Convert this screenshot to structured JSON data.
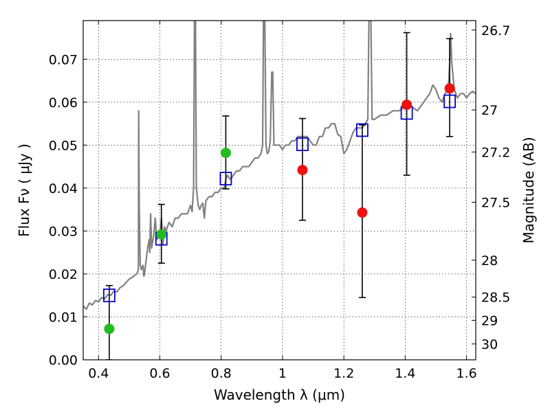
{
  "chart_data": {
    "type": "scatter",
    "xlabel": "Wavelength  λ (μm)",
    "ylabel": "Flux  Fν  ( μJy )",
    "ylabel_right": "Magnitude (AB)",
    "xlim": [
      0.35,
      1.63
    ],
    "ylim": [
      0.0,
      0.079
    ],
    "grid": true,
    "x_ticks": [
      0.4,
      0.6,
      0.8,
      1.0,
      1.2,
      1.4,
      1.6
    ],
    "x_tick_labels": [
      "0.4",
      "0.6",
      "0.8",
      "1",
      "1.2",
      "1.4",
      "1.6"
    ],
    "y_ticks": [
      0.0,
      0.01,
      0.02,
      0.03,
      0.04,
      0.05,
      0.06,
      0.07
    ],
    "y_tick_labels": [
      "0.00",
      "0.01",
      "0.02",
      "0.03",
      "0.04",
      "0.05",
      "0.06",
      "0.07"
    ],
    "right_ticks": [
      {
        "label": "26.7",
        "flux": 0.0768
      },
      {
        "label": "27",
        "flux": 0.0582
      },
      {
        "label": "27.2",
        "flux": 0.0484
      },
      {
        "label": "27.5",
        "flux": 0.0367
      },
      {
        "label": "28",
        "flux": 0.0232
      },
      {
        "label": "28.5",
        "flux": 0.0146
      },
      {
        "label": "29",
        "flux": 0.0092
      },
      {
        "label": "30",
        "flux": 0.0037
      }
    ],
    "series": [
      {
        "marker": "line",
        "color": "#808080",
        "points": [
          [
            0.35,
            0.0125
          ],
          [
            0.36,
            0.0118
          ],
          [
            0.37,
            0.0132
          ],
          [
            0.38,
            0.0128
          ],
          [
            0.39,
            0.0138
          ],
          [
            0.4,
            0.0135
          ],
          [
            0.41,
            0.0145
          ],
          [
            0.42,
            0.0142
          ],
          [
            0.43,
            0.0152
          ],
          [
            0.44,
            0.015
          ],
          [
            0.45,
            0.016
          ],
          [
            0.46,
            0.0158
          ],
          [
            0.47,
            0.0168
          ],
          [
            0.48,
            0.0172
          ],
          [
            0.49,
            0.018
          ],
          [
            0.5,
            0.0188
          ],
          [
            0.51,
            0.0192
          ],
          [
            0.52,
            0.0198
          ],
          [
            0.525,
            0.02
          ],
          [
            0.53,
            0.021
          ],
          [
            0.531,
            0.058
          ],
          [
            0.533,
            0.035
          ],
          [
            0.536,
            0.022
          ],
          [
            0.54,
            0.021
          ],
          [
            0.545,
            0.022
          ],
          [
            0.548,
            0.0195
          ],
          [
            0.55,
            0.02
          ],
          [
            0.555,
            0.023
          ],
          [
            0.56,
            0.026
          ],
          [
            0.565,
            0.028
          ],
          [
            0.567,
            0.025
          ],
          [
            0.57,
            0.034
          ],
          [
            0.573,
            0.026
          ],
          [
            0.58,
            0.029
          ],
          [
            0.585,
            0.033
          ],
          [
            0.59,
            0.028
          ],
          [
            0.6,
            0.029
          ],
          [
            0.605,
            0.033
          ],
          [
            0.61,
            0.027
          ],
          [
            0.615,
            0.031
          ],
          [
            0.62,
            0.03
          ],
          [
            0.63,
            0.032
          ],
          [
            0.64,
            0.031
          ],
          [
            0.65,
            0.033
          ],
          [
            0.66,
            0.033
          ],
          [
            0.67,
            0.034
          ],
          [
            0.68,
            0.034
          ],
          [
            0.69,
            0.034
          ],
          [
            0.7,
            0.036
          ],
          [
            0.705,
            0.0345
          ],
          [
            0.71,
            0.04
          ],
          [
            0.713,
            0.081
          ],
          [
            0.716,
            0.081
          ],
          [
            0.719,
            0.04
          ],
          [
            0.725,
            0.036
          ],
          [
            0.73,
            0.035
          ],
          [
            0.735,
            0.036
          ],
          [
            0.74,
            0.0365
          ],
          [
            0.745,
            0.033
          ],
          [
            0.75,
            0.037
          ],
          [
            0.76,
            0.038
          ],
          [
            0.77,
            0.038
          ],
          [
            0.78,
            0.039
          ],
          [
            0.79,
            0.039
          ],
          [
            0.8,
            0.04
          ],
          [
            0.81,
            0.04
          ],
          [
            0.815,
            0.042
          ],
          [
            0.82,
            0.043
          ],
          [
            0.83,
            0.042
          ],
          [
            0.84,
            0.043
          ],
          [
            0.85,
            0.044
          ],
          [
            0.86,
            0.044
          ],
          [
            0.87,
            0.045
          ],
          [
            0.88,
            0.045
          ],
          [
            0.89,
            0.045
          ],
          [
            0.9,
            0.046
          ],
          [
            0.91,
            0.047
          ],
          [
            0.92,
            0.047
          ],
          [
            0.93,
            0.048
          ],
          [
            0.935,
            0.05
          ],
          [
            0.938,
            0.081
          ],
          [
            0.942,
            0.081
          ],
          [
            0.946,
            0.05
          ],
          [
            0.95,
            0.048
          ],
          [
            0.955,
            0.0485
          ],
          [
            0.96,
            0.051
          ],
          [
            0.965,
            0.067
          ],
          [
            0.968,
            0.067
          ],
          [
            0.972,
            0.05
          ],
          [
            0.98,
            0.05
          ],
          [
            0.99,
            0.05
          ],
          [
            1.0,
            0.049
          ],
          [
            1.01,
            0.05
          ],
          [
            1.02,
            0.05
          ],
          [
            1.03,
            0.051
          ],
          [
            1.04,
            0.051
          ],
          [
            1.05,
            0.052
          ],
          [
            1.06,
            0.052
          ],
          [
            1.07,
            0.052
          ],
          [
            1.08,
            0.052
          ],
          [
            1.09,
            0.051
          ],
          [
            1.1,
            0.05
          ],
          [
            1.11,
            0.05
          ],
          [
            1.12,
            0.052
          ],
          [
            1.13,
            0.052
          ],
          [
            1.14,
            0.054
          ],
          [
            1.15,
            0.054
          ],
          [
            1.16,
            0.055
          ],
          [
            1.17,
            0.055
          ],
          [
            1.18,
            0.0525
          ],
          [
            1.19,
            0.052
          ],
          [
            1.2,
            0.048
          ],
          [
            1.21,
            0.049
          ],
          [
            1.22,
            0.051
          ],
          [
            1.23,
            0.053
          ],
          [
            1.24,
            0.054
          ],
          [
            1.25,
            0.054
          ],
          [
            1.26,
            0.054
          ],
          [
            1.27,
            0.055
          ],
          [
            1.278,
            0.056
          ],
          [
            1.282,
            0.081
          ],
          [
            1.288,
            0.081
          ],
          [
            1.292,
            0.056
          ],
          [
            1.3,
            0.056
          ],
          [
            1.32,
            0.057
          ],
          [
            1.34,
            0.057
          ],
          [
            1.36,
            0.058
          ],
          [
            1.38,
            0.058
          ],
          [
            1.4,
            0.059
          ],
          [
            1.42,
            0.059
          ],
          [
            1.44,
            0.058
          ],
          [
            1.45,
            0.059
          ],
          [
            1.46,
            0.06
          ],
          [
            1.47,
            0.061
          ],
          [
            1.48,
            0.062
          ],
          [
            1.49,
            0.064
          ],
          [
            1.5,
            0.063
          ],
          [
            1.51,
            0.061
          ],
          [
            1.52,
            0.06
          ],
          [
            1.53,
            0.062
          ],
          [
            1.54,
            0.063
          ],
          [
            1.545,
            0.069
          ],
          [
            1.548,
            0.076
          ],
          [
            1.552,
            0.069
          ],
          [
            1.56,
            0.063
          ],
          [
            1.57,
            0.061
          ],
          [
            1.58,
            0.062
          ],
          [
            1.59,
            0.062
          ],
          [
            1.6,
            0.061
          ],
          [
            1.61,
            0.062
          ],
          [
            1.62,
            0.0625
          ],
          [
            1.63,
            0.062
          ]
        ]
      },
      {
        "marker": "open-square",
        "color": "#0000cc",
        "points": [
          [
            0.435,
            0.015
          ],
          [
            0.605,
            0.0282
          ],
          [
            0.815,
            0.0422
          ],
          [
            1.065,
            0.0502
          ],
          [
            1.26,
            0.0535
          ],
          [
            1.405,
            0.0575
          ],
          [
            1.545,
            0.0602
          ]
        ]
      },
      {
        "marker": "circle",
        "color": "#22bb22",
        "points": [
          [
            0.435,
            0.0072
          ],
          [
            0.605,
            0.0292
          ],
          [
            0.815,
            0.0482
          ]
        ]
      },
      {
        "marker": "circle",
        "color": "#ee1111",
        "points": [
          [
            1.065,
            0.0442
          ],
          [
            1.26,
            0.0343
          ],
          [
            1.405,
            0.0594
          ],
          [
            1.545,
            0.0632
          ]
        ]
      }
    ],
    "error_bars": [
      {
        "x": 0.435,
        "low": 0.0,
        "high": 0.0173
      },
      {
        "x": 0.605,
        "low": 0.0225,
        "high": 0.0362
      },
      {
        "x": 0.815,
        "low": 0.0398,
        "high": 0.0568
      },
      {
        "x": 1.065,
        "low": 0.0325,
        "high": 0.0562
      },
      {
        "x": 1.26,
        "low": 0.0145,
        "high": 0.0547
      },
      {
        "x": 1.405,
        "low": 0.043,
        "high": 0.0762
      },
      {
        "x": 1.545,
        "low": 0.052,
        "high": 0.0748
      }
    ]
  }
}
